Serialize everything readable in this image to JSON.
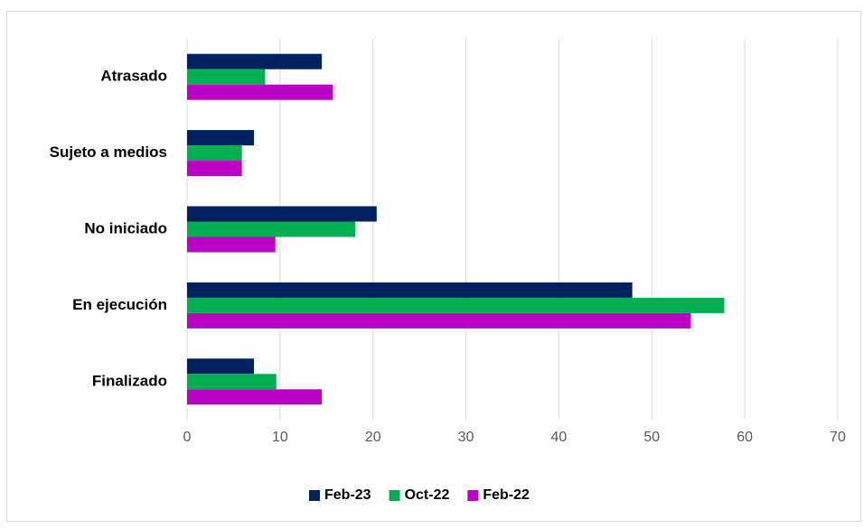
{
  "chart_data": {
    "type": "hbar",
    "categories": [
      "Atrasado",
      "Sujeto a medios",
      "No iniciado",
      "En ejecución",
      "Finalizado"
    ],
    "series": [
      {
        "name": "Feb-23",
        "color": "#002060",
        "values": [
          14.5,
          7.2,
          20.4,
          47.9,
          7.2
        ]
      },
      {
        "name": "Oct-22",
        "color": "#00b050",
        "values": [
          8.4,
          5.9,
          18.1,
          57.8,
          9.6
        ]
      },
      {
        "name": "Feb-22",
        "color": "#bb00c8",
        "values": [
          15.7,
          5.9,
          9.5,
          54.2,
          14.5
        ]
      }
    ],
    "xlim": [
      0,
      70
    ],
    "xticks": [
      0,
      10,
      20,
      30,
      40,
      50,
      60,
      70
    ],
    "grid": true,
    "legend": "bottom"
  }
}
